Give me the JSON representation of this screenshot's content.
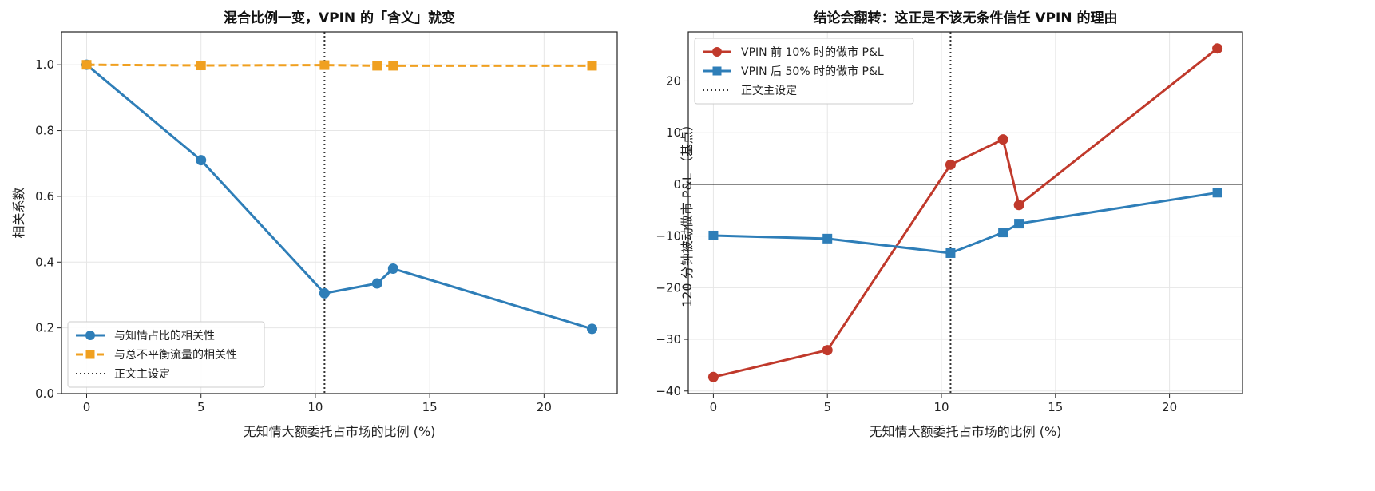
{
  "chart_data": [
    {
      "type": "line",
      "title": "混合比例一变，VPIN 的「含义」就变",
      "xlabel": "无知情大额委托占市场的比例 (%)",
      "ylabel": "相关系数",
      "xlim": [
        -1.1,
        23.2
      ],
      "ylim": [
        0.0,
        1.1
      ],
      "xticks": [
        0,
        5,
        10,
        15,
        20
      ],
      "yticks": [
        0.0,
        0.2,
        0.4,
        0.6,
        0.8,
        1.0
      ],
      "ytick_labels": [
        "0.0",
        "0.2",
        "0.4",
        "0.6",
        "0.8",
        "1.0"
      ],
      "grid": true,
      "legend_position": "lower-left",
      "vline": {
        "x": 10.4,
        "label": "正文主设定"
      },
      "series": [
        {
          "name": "与知情占比的相关性",
          "color": "#2e7eb8",
          "marker": "circle",
          "dash": "solid",
          "x": [
            0,
            5,
            10.4,
            12.7,
            13.4,
            22.1
          ],
          "y": [
            1.0,
            0.71,
            0.305,
            0.335,
            0.38,
            0.197
          ]
        },
        {
          "name": "与总不平衡流量的相关性",
          "color": "#f0a020",
          "marker": "square",
          "dash": "dashed",
          "x": [
            0,
            5,
            10.4,
            12.7,
            13.4,
            22.1
          ],
          "y": [
            1.0,
            0.998,
            0.999,
            0.997,
            0.997,
            0.997
          ]
        }
      ]
    },
    {
      "type": "line",
      "title": "结论会翻转：这正是不该无条件信任 VPIN 的理由",
      "xlabel": "无知情大额委托占市场的比例 (%)",
      "ylabel": "120 分钟被动做市 P&L （基点）",
      "xlim": [
        -1.1,
        23.2
      ],
      "ylim": [
        -40.5,
        29.5
      ],
      "xticks": [
        0,
        5,
        10,
        15,
        20
      ],
      "yticks": [
        -40,
        -30,
        -20,
        -10,
        0,
        10,
        20
      ],
      "ytick_labels": [
        "−40",
        "−30",
        "−20",
        "−10",
        "0",
        "10",
        "20"
      ],
      "grid": true,
      "legend_position": "upper-left",
      "hline": 0,
      "vline": {
        "x": 10.4,
        "label": "正文主设定"
      },
      "series": [
        {
          "name": "VPIN 前 10% 时的做市 P&L",
          "color": "#c0392b",
          "marker": "circle",
          "dash": "solid",
          "x": [
            0,
            5,
            10.4,
            12.7,
            13.4,
            22.1
          ],
          "y": [
            -37.3,
            -32.1,
            3.8,
            8.7,
            -4.0,
            26.3
          ]
        },
        {
          "name": "VPIN 后 50% 时的做市 P&L",
          "color": "#2e7eb8",
          "marker": "square",
          "dash": "solid",
          "x": [
            0,
            5,
            10.4,
            12.7,
            13.4,
            22.1
          ],
          "y": [
            -9.9,
            -10.5,
            -13.3,
            -9.3,
            -7.6,
            -1.6
          ]
        }
      ]
    }
  ]
}
